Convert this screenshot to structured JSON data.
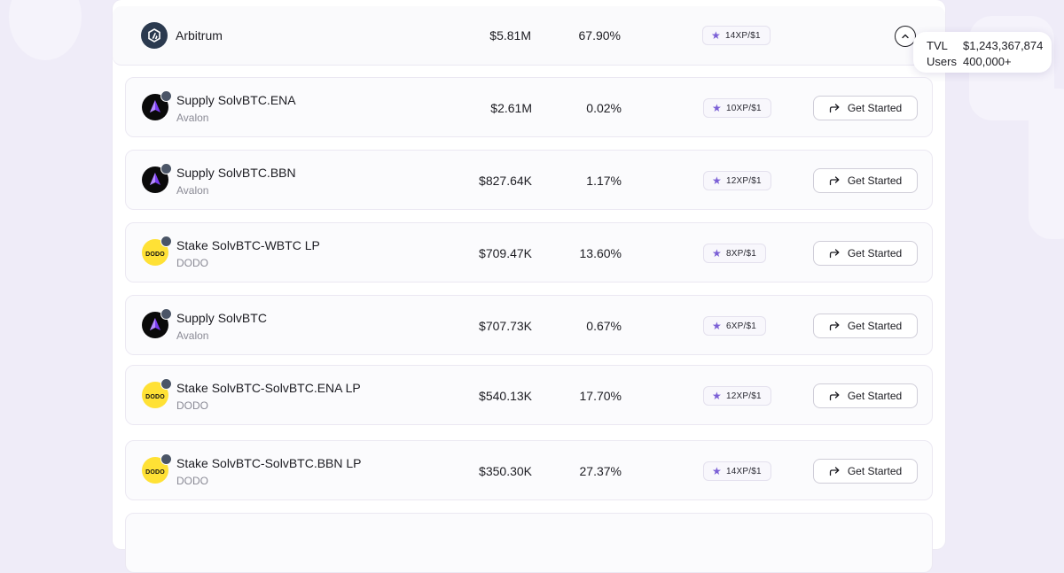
{
  "header": {
    "chain_name": "Arbitrum",
    "chain_icon": "arbitrum-icon",
    "tvl": "$5.81M",
    "apy": "67.90%",
    "xp": "14XP/$1"
  },
  "tooltip": {
    "tvl_label": "TVL",
    "tvl_value": "$1,243,367,874",
    "users_label": "Users",
    "users_value": "400,000+"
  },
  "cta_label": "Get Started",
  "rows": [
    {
      "name": "Supply SolvBTC.ENA",
      "protocol": "Avalon",
      "tvl": "$2.61M",
      "apy": "0.02%",
      "xp": "10XP/$1"
    },
    {
      "name": "Supply SolvBTC.BBN",
      "protocol": "Avalon",
      "tvl": "$827.64K",
      "apy": "1.17%",
      "xp": "12XP/$1"
    },
    {
      "name": "Stake SolvBTC-WBTC LP",
      "protocol": "DODO",
      "tvl": "$709.47K",
      "apy": "13.60%",
      "xp": "8XP/$1"
    },
    {
      "name": "Supply SolvBTC",
      "protocol": "Avalon",
      "tvl": "$707.73K",
      "apy": "0.67%",
      "xp": "6XP/$1"
    },
    {
      "name": "Stake SolvBTC-SolvBTC.ENA LP",
      "protocol": "DODO",
      "tvl": "$540.13K",
      "apy": "17.70%",
      "xp": "12XP/$1"
    },
    {
      "name": "Stake SolvBTC-SolvBTC.BBN LP",
      "protocol": "DODO",
      "tvl": "$350.30K",
      "apy": "27.37%",
      "xp": "14XP/$1"
    }
  ],
  "dodo_logo_text": "DODO",
  "colors": {
    "accent_star": "#7b5fd6",
    "page_bg": "#efecf8",
    "avalon_icon_bg": "#0a0a0a",
    "dodo_icon_bg": "#ffe135"
  }
}
